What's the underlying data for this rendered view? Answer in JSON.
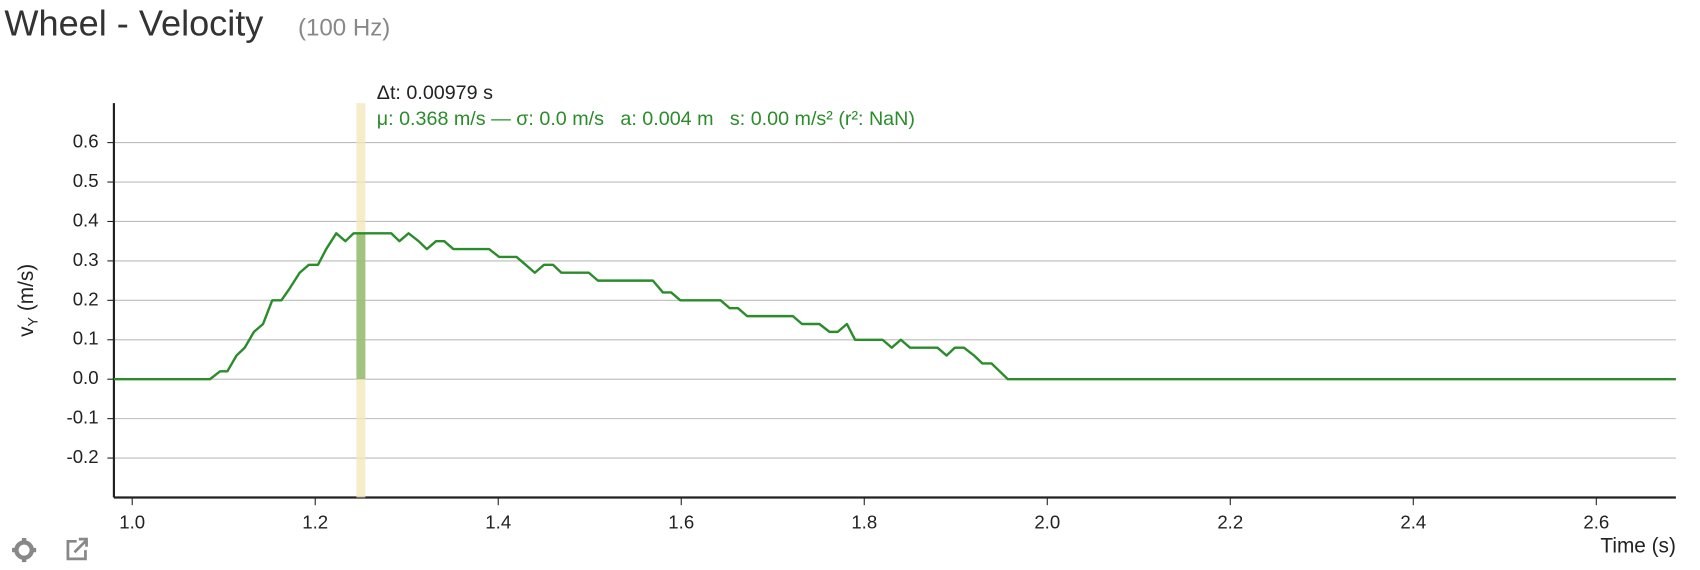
{
  "chart_data": {
    "type": "line",
    "title": "Wheel - Velocity",
    "subtitle": "(100 Hz)",
    "annotations": [
      "Δt: 0.00979 s",
      "μ: 0.368 m/s — σ: 0.0 m/s   a: 0.004 m   s: 0.00 m/s² (r²: NaN)"
    ],
    "ylabel_main": "v",
    "ylabel_sub": "Y",
    "ylabel_unit": " (m/s)",
    "xlabel": "Time (s)",
    "x": [
      0.98,
      1.085,
      1.096,
      1.104,
      1.114,
      1.123,
      1.133,
      1.143,
      1.153,
      1.163,
      1.172,
      1.183,
      1.193,
      1.203,
      1.212,
      1.223,
      1.233,
      1.242,
      1.283,
      1.292,
      1.302,
      1.313,
      1.322,
      1.332,
      1.341,
      1.351,
      1.39,
      1.401,
      1.42,
      1.43,
      1.44,
      1.45,
      1.46,
      1.469,
      1.499,
      1.509,
      1.569,
      1.58,
      1.589,
      1.599,
      1.643,
      1.653,
      1.662,
      1.672,
      1.722,
      1.732,
      1.751,
      1.762,
      1.771,
      1.781,
      1.79,
      1.82,
      1.83,
      1.84,
      1.85,
      1.88,
      1.89,
      1.899,
      1.909,
      1.92,
      1.929,
      1.939,
      1.948,
      1.957,
      2.687
    ],
    "series": [
      {
        "name": "vY",
        "color": "#2a8c2a",
        "values": [
          0,
          0,
          0.02,
          0.02,
          0.06,
          0.08,
          0.12,
          0.14,
          0.2,
          0.2,
          0.23,
          0.27,
          0.29,
          0.29,
          0.33,
          0.37,
          0.35,
          0.37,
          0.37,
          0.35,
          0.37,
          0.35,
          0.33,
          0.35,
          0.35,
          0.33,
          0.33,
          0.31,
          0.31,
          0.29,
          0.27,
          0.29,
          0.29,
          0.27,
          0.27,
          0.25,
          0.25,
          0.22,
          0.22,
          0.2,
          0.2,
          0.18,
          0.18,
          0.16,
          0.16,
          0.14,
          0.14,
          0.12,
          0.12,
          0.14,
          0.1,
          0.1,
          0.08,
          0.1,
          0.08,
          0.08,
          0.06,
          0.08,
          0.08,
          0.06,
          0.04,
          0.04,
          0.02,
          0,
          0
        ]
      }
    ],
    "highlight_range": [
      1.245,
      1.2548
    ],
    "highlight_mean": 0.368,
    "xlim": [
      0.98,
      2.687
    ],
    "ylim": [
      -0.3,
      0.7
    ],
    "xticks": [
      {
        "value": 1,
        "label": "1.0"
      },
      1.2,
      1.4,
      1.6,
      1.8,
      {
        "value": 2,
        "label": "2.0"
      },
      2.2,
      2.4,
      2.6
    ],
    "yticks": [
      -0.2,
      -0.1,
      {
        "value": 0,
        "label": "0.0"
      },
      0.1,
      0.2,
      0.3,
      0.4,
      0.5,
      0.6
    ],
    "grid": true
  }
}
